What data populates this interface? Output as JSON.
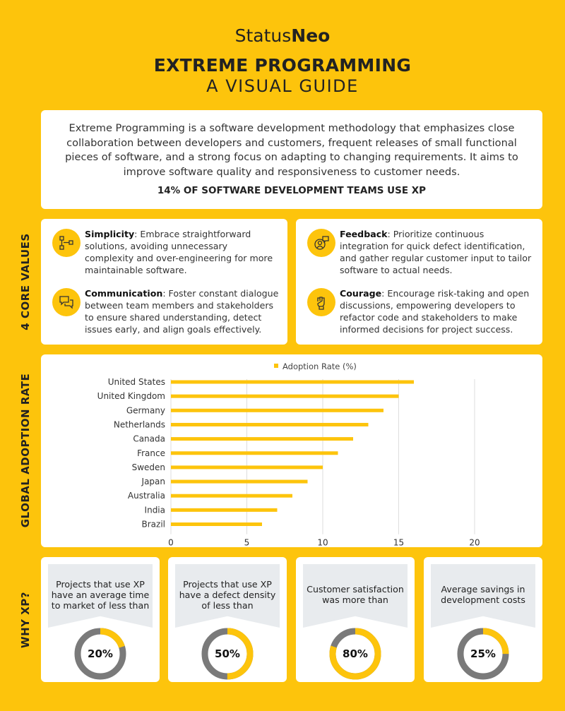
{
  "header": {
    "brand_regular": "Status",
    "brand_bold": "Neo",
    "title": "EXTREME PROGRAMMING",
    "subtitle": "A VISUAL GUIDE"
  },
  "intro": {
    "text": "Extreme Programming is a software development methodology that emphasizes close collaboration between developers and customers, frequent releases of small functional pieces of software, and a strong focus on adapting to changing requirements. It aims to improve software quality and responsiveness to customer needs.",
    "stat": "14% OF SOFTWARE DEVELOPMENT TEAMS USE XP"
  },
  "core_values": {
    "section_label": "4 CORE VALUES",
    "items": [
      {
        "name": "Simplicity",
        "text": ": Embrace straightforward solutions, avoiding unnecessary complexity and over-engineering for more maintainable software.",
        "icon": "flowchart-icon"
      },
      {
        "name": "Communication",
        "text": ": Foster constant dialogue between team members and stakeholders to ensure shared understanding, detect issues early, and align goals effectively.",
        "icon": "chat-bubbles-icon"
      },
      {
        "name": "Feedback",
        "text": ": Prioritize continuous integration for quick defect identification, and gather regular customer input to tailor software to actual needs.",
        "icon": "feedback-user-icon"
      },
      {
        "name": "Courage",
        "text": ": Encourage risk-taking and open discussions, empowering developers to refactor code and stakeholders to make informed decisions for project success.",
        "icon": "raised-fist-icon"
      }
    ]
  },
  "adoption": {
    "section_label": "GLOBAL ADOPTION RATE"
  },
  "chart_data": {
    "type": "bar",
    "orientation": "horizontal",
    "categories": [
      "United States",
      "United Kingdom",
      "Germany",
      "Netherlands",
      "Canada",
      "France",
      "Sweden",
      "Japan",
      "Australia",
      "India",
      "Brazil"
    ],
    "series": [
      {
        "name": "Adoption Rate (%)",
        "values": [
          16,
          15,
          14,
          13,
          12,
          11,
          10,
          9,
          8,
          7,
          6
        ]
      }
    ],
    "xlim": [
      0,
      20
    ],
    "xticks": [
      "0",
      "5",
      "10",
      "15",
      "20"
    ],
    "legend_position": "top",
    "grid": true,
    "colors": {
      "bar": "#FDC40C",
      "grid": "#DDDDDD"
    }
  },
  "why": {
    "section_label": "WHY XP?",
    "items": [
      {
        "text": "Projects that use XP have an average time to market of less than",
        "percent_label": "20%",
        "value": 20
      },
      {
        "text": "Projects that use XP have a defect density of less than",
        "percent_label": "50%",
        "value": 50
      },
      {
        "text": "Customer satisfaction was more than",
        "percent_label": "80%",
        "value": 80
      },
      {
        "text": "Average savings in development costs",
        "percent_label": "25%",
        "value": 25
      }
    ]
  },
  "colors": {
    "accent": "#FDC40C",
    "ring_track": "#7A7A7A",
    "panel": "#E8EBEE"
  }
}
